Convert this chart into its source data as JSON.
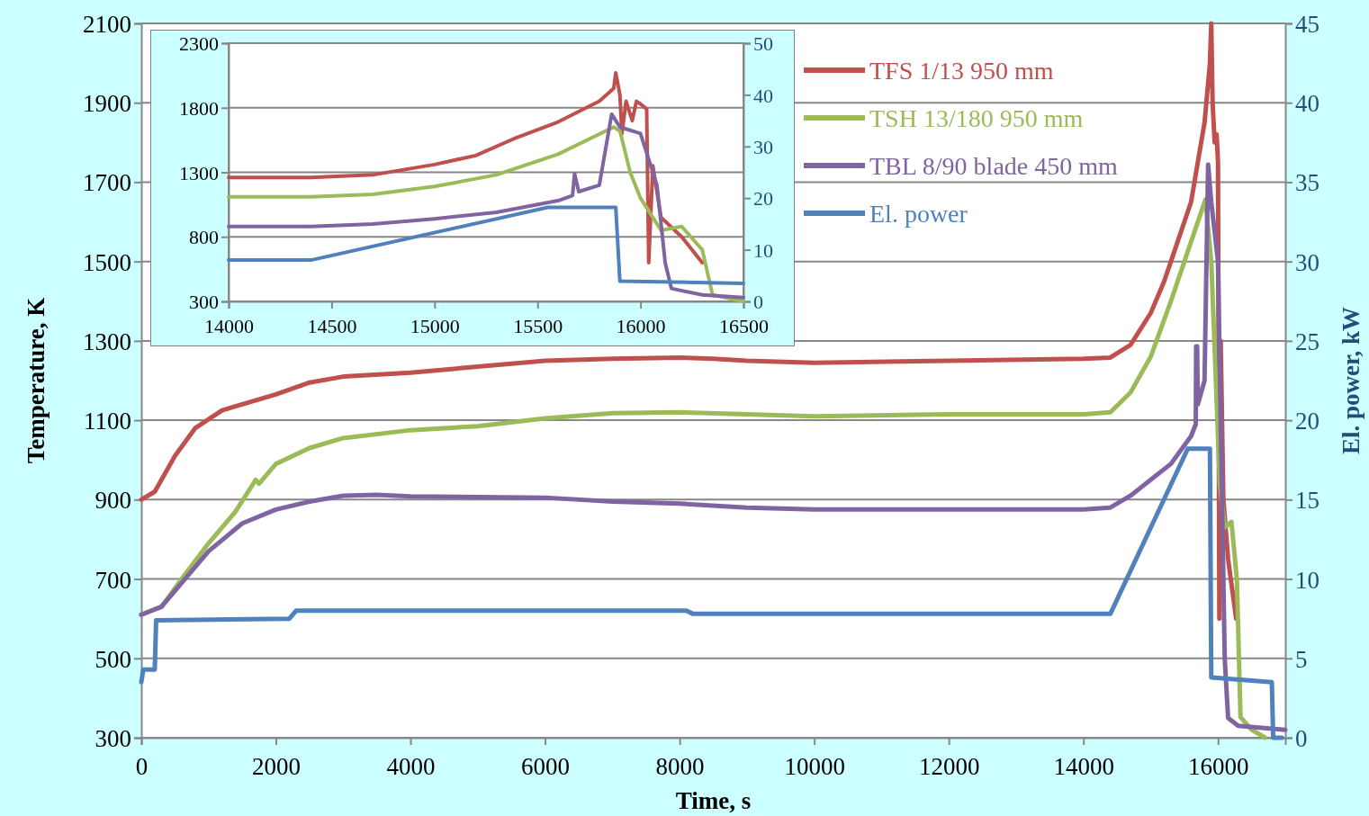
{
  "chart_data": [
    {
      "type": "line",
      "xlabel": "Time, s",
      "ylabel": "Temperature, K",
      "y2label": "El. power, kW",
      "xlim": [
        0,
        17000
      ],
      "xticks": [
        0,
        2000,
        4000,
        6000,
        8000,
        10000,
        12000,
        14000,
        16000
      ],
      "ylim": [
        300,
        2100
      ],
      "yticks": [
        300,
        500,
        700,
        900,
        1100,
        1300,
        1500,
        1700,
        1900,
        2100
      ],
      "y2lim": [
        0,
        45
      ],
      "y2ticks": [
        0,
        5,
        10,
        15,
        20,
        25,
        30,
        35,
        40,
        45
      ],
      "grid": "y",
      "legend": "top right",
      "line_style": "solid",
      "marker": "none",
      "series": [
        {
          "name": "TFS 1/13 950 mm",
          "color": "#c0504d",
          "x": [
            0,
            200,
            500,
            800,
            1200,
            2000,
            2500,
            3000,
            4000,
            5000,
            6000,
            7000,
            8000,
            8500,
            9000,
            10000,
            12000,
            14000,
            14400,
            14700,
            15000,
            15200,
            15400,
            15600,
            15800,
            15880,
            15900,
            15920,
            15950,
            15980,
            16000,
            16020,
            16040,
            16080,
            16150,
            16270
          ],
          "values": [
            900,
            920,
            1010,
            1080,
            1125,
            1165,
            1195,
            1210,
            1220,
            1235,
            1250,
            1255,
            1258,
            1255,
            1250,
            1245,
            1250,
            1255,
            1258,
            1290,
            1370,
            1450,
            1550,
            1650,
            1850,
            2000,
            2100,
            1900,
            1800,
            1820,
            1750,
            600,
            1300,
            900,
            750,
            600
          ]
        },
        {
          "name": "TSH 13/180 950 mm",
          "color": "#9bbb59",
          "x": [
            0,
            300,
            600,
            1000,
            1400,
            1700,
            1750,
            2000,
            2500,
            3000,
            4000,
            5000,
            6000,
            7000,
            8000,
            9000,
            10000,
            12000,
            14000,
            14400,
            14700,
            15000,
            15300,
            15600,
            15813,
            15900,
            16027,
            16100,
            16200,
            16280,
            16335,
            16500,
            16700
          ],
          "values": [
            610,
            630,
            700,
            790,
            870,
            950,
            940,
            990,
            1030,
            1055,
            1075,
            1085,
            1105,
            1118,
            1120,
            1115,
            1110,
            1115,
            1115,
            1120,
            1170,
            1260,
            1400,
            1550,
            1656,
            1500,
            939,
            830,
            844,
            700,
            352,
            320,
            300
          ]
        },
        {
          "name": "TBL 8/90 blade 450 mm",
          "color": "#8064a2",
          "x": [
            0,
            300,
            600,
            1000,
            1500,
            2000,
            2500,
            3000,
            3500,
            4000,
            6000,
            7000,
            8000,
            9000,
            10000,
            12000,
            14000,
            14400,
            14700,
            15000,
            15300,
            15600,
            15670,
            15675,
            15690,
            15700,
            15800,
            15853,
            15900,
            16000,
            16050,
            16100,
            16150,
            16300,
            17000
          ],
          "values": [
            610,
            630,
            690,
            770,
            840,
            875,
            895,
            910,
            912,
            908,
            905,
            895,
            890,
            880,
            875,
            875,
            875,
            880,
            910,
            950,
            990,
            1060,
            1090,
            1286,
            1286,
            1140,
            1200,
            1744,
            1650,
            1500,
            1000,
            500,
            350,
            330,
            320
          ]
        },
        {
          "name": "El. power",
          "color": "#4f81bd",
          "axis": "y2",
          "x": [
            0,
            30,
            200,
            220,
            2200,
            2300,
            8100,
            8200,
            14400,
            15550,
            15880,
            15900,
            16800,
            16820,
            16950
          ],
          "values": [
            3.5,
            4.3,
            4.3,
            7.4,
            7.5,
            8,
            8,
            7.8,
            7.8,
            18.2,
            18.2,
            3.8,
            3.5,
            0,
            0
          ]
        }
      ]
    },
    {
      "type": "line",
      "xlim": [
        14000,
        16500
      ],
      "xticks": [
        14000,
        14500,
        15000,
        15500,
        16000,
        16500
      ],
      "ylim": [
        300,
        2300
      ],
      "yticks": [
        300,
        800,
        1300,
        1800,
        2300
      ],
      "y2lim": [
        0,
        50
      ],
      "y2ticks": [
        0,
        10,
        20,
        30,
        40,
        50
      ],
      "grid": "y",
      "legend": false,
      "line_style": "solid",
      "marker": "none",
      "series": [
        {
          "color": "#c0504d",
          "x": [
            14000,
            14400,
            14700,
            15000,
            15200,
            15400,
            15600,
            15800,
            15870,
            15880,
            15900,
            15910,
            15930,
            15960,
            15980,
            16000,
            16030,
            16040,
            16060,
            16100,
            16200,
            16300
          ],
          "values": [
            1260,
            1260,
            1280,
            1360,
            1430,
            1570,
            1690,
            1850,
            1950,
            2070,
            1900,
            1600,
            1850,
            1700,
            1850,
            1830,
            1790,
            600,
            1350,
            950,
            800,
            600
          ]
        },
        {
          "color": "#9bbb59",
          "x": [
            14000,
            14400,
            14700,
            15000,
            15300,
            15600,
            15870,
            15900,
            15950,
            16000,
            16100,
            16200,
            16300,
            16350,
            16500
          ],
          "values": [
            1110,
            1110,
            1130,
            1190,
            1280,
            1440,
            1650,
            1620,
            1300,
            1100,
            850,
            880,
            700,
            350,
            300
          ]
        },
        {
          "color": "#8064a2",
          "x": [
            14000,
            14400,
            14700,
            15000,
            15300,
            15600,
            15670,
            15680,
            15700,
            15800,
            15860,
            15900,
            16000,
            16080,
            16120,
            16150,
            16300,
            16500
          ],
          "values": [
            880,
            880,
            900,
            940,
            990,
            1080,
            1120,
            1290,
            1150,
            1200,
            1750,
            1650,
            1600,
            1200,
            600,
            400,
            350,
            330
          ]
        },
        {
          "color": "#4f81bd",
          "axis": "y2",
          "x": [
            14000,
            14400,
            15550,
            15880,
            15900,
            16500
          ],
          "values": [
            8,
            8,
            18.2,
            18.2,
            3.9,
            3.5
          ]
        }
      ]
    }
  ]
}
